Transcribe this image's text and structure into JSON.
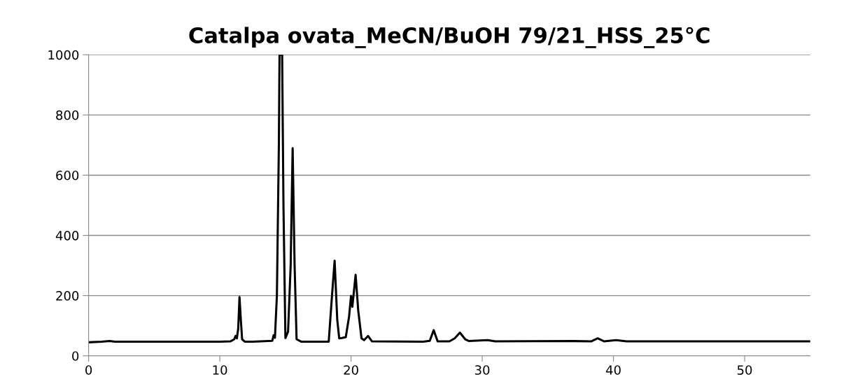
{
  "chart_data": {
    "type": "line",
    "title": "Catalpa ovata_MeCN/BuOH 79/21_HSS_25°C",
    "series": [
      {
        "color": "#000000",
        "x": [
          0,
          1.0,
          1.6,
          2.0,
          5.0,
          7.5,
          10.0,
          10.8,
          11.1,
          11.2,
          11.3,
          11.4,
          11.5,
          11.6,
          11.7,
          11.9,
          12.5,
          14.0,
          14.1,
          14.2,
          14.35,
          14.5,
          14.55,
          14.75,
          14.85,
          15.0,
          15.2,
          15.4,
          15.55,
          15.7,
          15.85,
          16.2,
          18.3,
          18.55,
          18.75,
          18.95,
          19.1,
          19.3,
          19.6,
          19.85,
          20.0,
          20.1,
          20.35,
          20.55,
          20.8,
          21.0,
          21.3,
          21.6,
          25.5,
          26.0,
          26.3,
          26.6,
          27.5,
          27.9,
          28.3,
          28.7,
          29.0,
          30.4,
          31.0,
          37.0,
          38.3,
          38.8,
          39.3,
          40.2,
          41.0,
          45.0,
          55.0
        ],
        "values": [
          45,
          47,
          49,
          47,
          47,
          47,
          47,
          48,
          55,
          66,
          58,
          90,
          195,
          120,
          55,
          47,
          47,
          50,
          68,
          60,
          200,
          700,
          1000,
          1000,
          500,
          59,
          80,
          300,
          690,
          300,
          55,
          47,
          47,
          200,
          316,
          120,
          58,
          59,
          62,
          130,
          199,
          163,
          269,
          150,
          58,
          52,
          66,
          48,
          47,
          50,
          85,
          48,
          48,
          58,
          77,
          55,
          49,
          52,
          48,
          49,
          48,
          58,
          48,
          52,
          48,
          48,
          48
        ]
      }
    ],
    "xlim": [
      0,
      55
    ],
    "ylim": [
      0,
      1000
    ],
    "xticks": [
      0,
      10,
      20,
      30,
      40,
      50
    ],
    "yticks": [
      0,
      200,
      400,
      600,
      800,
      1000
    ],
    "grid": "y",
    "line_style": "solid",
    "marker": "none",
    "legend": false
  }
}
